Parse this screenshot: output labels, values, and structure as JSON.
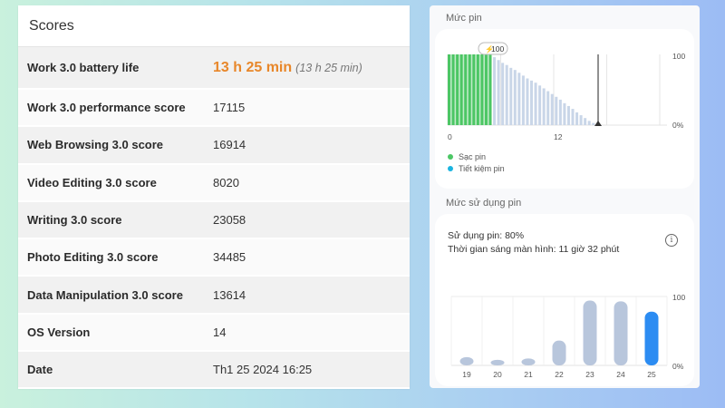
{
  "scores": {
    "title": "Scores",
    "rows": [
      {
        "label": "Work 3.0 battery life",
        "value": "13 h 25 min",
        "sub": "(13 h 25 min)"
      },
      {
        "label": "Work 3.0 performance score",
        "value": "17115"
      },
      {
        "label": "Web Browsing 3.0 score",
        "value": "16914"
      },
      {
        "label": "Video Editing 3.0 score",
        "value": "8020"
      },
      {
        "label": "Writing 3.0 score",
        "value": "23058"
      },
      {
        "label": "Photo Editing 3.0 score",
        "value": "34485"
      },
      {
        "label": "Data Manipulation 3.0 score",
        "value": "13614"
      },
      {
        "label": "OS Version",
        "value": "14"
      },
      {
        "label": "Date",
        "value": "Th1 25 2024 16:25"
      }
    ]
  },
  "battery": {
    "section_title": "Mức pin",
    "badge": "100",
    "y_max_label": "100",
    "y_min_label": "0%",
    "x_labels": [
      "0",
      "12"
    ],
    "legend": [
      {
        "label": "Sạc pin",
        "color": "#4cc765"
      },
      {
        "label": "Tiết kiệm pin",
        "color": "#1ab4e0"
      }
    ]
  },
  "usage": {
    "section_title": "Mức sử dụng pin",
    "usage_label": "Sử dụng pin: 80%",
    "screen_time": "Thời gian sáng màn hình: 11 giờ 32 phút",
    "info_icon": "i",
    "y_max_label": "100",
    "y_min_label": "0%"
  },
  "chart_data": {
    "type": "bar",
    "categories": [
      "19",
      "20",
      "21",
      "22",
      "23",
      "24",
      "25"
    ],
    "values": [
      12,
      8,
      10,
      36,
      94,
      93,
      78
    ],
    "ylim": [
      0,
      100
    ],
    "colors": [
      "#b8c6dc",
      "#b8c6dc",
      "#b8c6dc",
      "#b8c6dc",
      "#b8c6dc",
      "#b8c6dc",
      "#2c8cf2"
    ]
  }
}
